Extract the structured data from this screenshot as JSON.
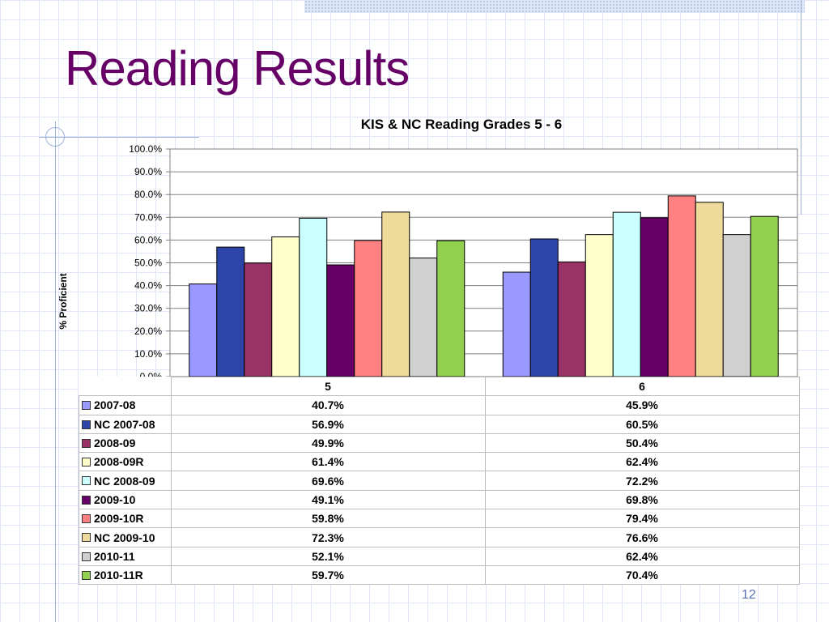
{
  "slide": {
    "title": "Reading Results",
    "page_number": "12"
  },
  "chart_data": {
    "type": "bar",
    "title": "KIS & NC Reading Grades 5 - 6",
    "ylabel": "% Proficient",
    "xlabel": "",
    "ylim": [
      0,
      100
    ],
    "yticks": [
      "0.0%",
      "10.0%",
      "20.0%",
      "30.0%",
      "40.0%",
      "50.0%",
      "60.0%",
      "70.0%",
      "80.0%",
      "90.0%",
      "100.0%"
    ],
    "grid": true,
    "legend": "table-left",
    "categories": [
      "5",
      "6"
    ],
    "series": [
      {
        "name": "2007-08",
        "color": "#9999ff",
        "values": [
          40.7,
          45.9
        ],
        "labels": [
          "40.7%",
          "45.9%"
        ]
      },
      {
        "name": "NC 2007-08",
        "color": "#2d45a8",
        "values": [
          56.9,
          60.5
        ],
        "labels": [
          "56.9%",
          "60.5%"
        ]
      },
      {
        "name": "2008-09",
        "color": "#993366",
        "values": [
          49.9,
          50.4
        ],
        "labels": [
          "49.9%",
          "50.4%"
        ]
      },
      {
        "name": "2008-09R",
        "color": "#ffffcc",
        "values": [
          61.4,
          62.4
        ],
        "labels": [
          "61.4%",
          "62.4%"
        ]
      },
      {
        "name": "NC 2008-09",
        "color": "#ccffff",
        "values": [
          69.6,
          72.2
        ],
        "labels": [
          "69.6%",
          "72.2%"
        ]
      },
      {
        "name": "2009-10",
        "color": "#660066",
        "values": [
          49.1,
          69.8
        ],
        "labels": [
          "49.1%",
          "69.8%"
        ]
      },
      {
        "name": "2009-10R",
        "color": "#ff8080",
        "values": [
          59.8,
          79.4
        ],
        "labels": [
          "59.8%",
          "79.4%"
        ]
      },
      {
        "name": "NC 2009-10",
        "color": "#eeda9a",
        "values": [
          72.3,
          76.6
        ],
        "labels": [
          "72.3%",
          "76.6%"
        ]
      },
      {
        "name": "2010-11",
        "color": "#d0d0d0",
        "values": [
          52.1,
          62.4
        ],
        "labels": [
          "52.1%",
          "62.4%"
        ]
      },
      {
        "name": "2010-11R",
        "color": "#92d050",
        "values": [
          59.7,
          70.4
        ],
        "labels": [
          "59.7%",
          "70.4%"
        ]
      }
    ]
  }
}
